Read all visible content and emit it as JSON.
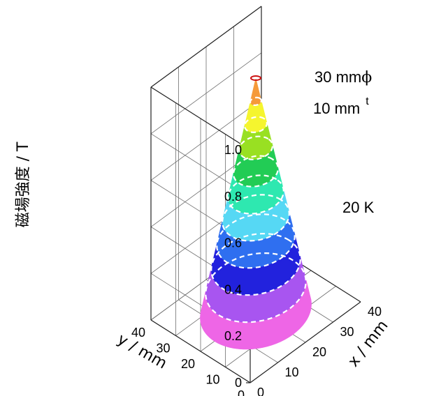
{
  "chart_data": {
    "type": "surface3d",
    "title": "",
    "zlabel": "磁場強度 / T",
    "xlabel": "x / mm",
    "ylabel": "y / mm",
    "zlim": [
      0,
      1.0
    ],
    "xlim": [
      0,
      40
    ],
    "ylim": [
      0,
      40
    ],
    "z_ticks": [
      "0",
      "0.2",
      "0.4",
      "0.6",
      "0.8",
      "1.0"
    ],
    "x_ticks": [
      "0",
      "10",
      "20",
      "30",
      "40"
    ],
    "y_ticks": [
      "0",
      "10",
      "20",
      "30",
      "40"
    ],
    "peak": {
      "x": 20,
      "y": 20,
      "z": 1.0
    },
    "base_radius_mm": 15,
    "shape": "cone (trapped field profile)",
    "contour_levels": [
      0.1,
      0.2,
      0.3,
      0.4,
      0.5,
      0.6,
      0.7,
      0.8,
      0.9
    ],
    "color_bands": [
      {
        "from": 0.0,
        "to": 0.1,
        "color": "#ee66e6"
      },
      {
        "from": 0.1,
        "to": 0.2,
        "color": "#a855f0"
      },
      {
        "from": 0.2,
        "to": 0.3,
        "color": "#2222dd"
      },
      {
        "from": 0.3,
        "to": 0.4,
        "color": "#2f6ff0"
      },
      {
        "from": 0.4,
        "to": 0.5,
        "color": "#56d8f4"
      },
      {
        "from": 0.5,
        "to": 0.6,
        "color": "#2ee8b0"
      },
      {
        "from": 0.6,
        "to": 0.7,
        "color": "#22cc55"
      },
      {
        "from": 0.7,
        "to": 0.8,
        "color": "#99e022"
      },
      {
        "from": 0.8,
        "to": 0.9,
        "color": "#f5f52e"
      },
      {
        "from": 0.9,
        "to": 1.0,
        "color": "#f59a3a"
      }
    ],
    "annotations": [
      {
        "text": "30 mm",
        "symbol": "ϕ"
      },
      {
        "text": "10 mm",
        "superscript": "t"
      },
      {
        "text": "20 K"
      }
    ]
  }
}
